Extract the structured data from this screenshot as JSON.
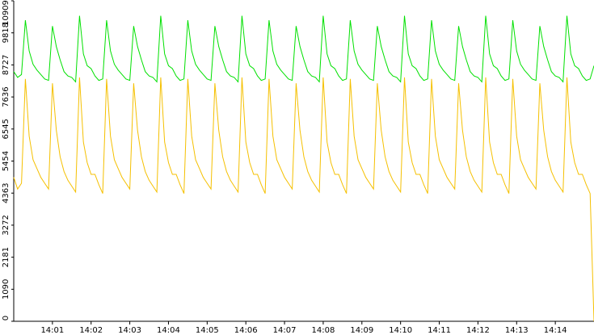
{
  "chart_data": {
    "type": "line",
    "x": [
      0,
      0.1,
      0.2,
      0.3,
      0.4,
      0.5,
      0.6,
      0.7,
      0.8,
      0.9,
      1.0,
      1.1,
      1.2,
      1.3,
      1.4,
      1.5,
      1.6,
      1.7,
      1.8,
      1.9,
      2.0,
      2.1,
      2.2,
      2.3,
      2.4,
      2.5,
      2.6,
      2.7,
      2.8,
      2.9,
      3.0,
      3.1,
      3.2,
      3.3,
      3.4,
      3.5,
      3.6,
      3.7,
      3.8,
      3.9,
      4.0,
      4.1,
      4.2,
      4.3,
      4.4,
      4.5,
      4.6,
      4.7,
      4.8,
      4.9,
      5.0,
      5.1,
      5.2,
      5.3,
      5.4,
      5.5,
      5.6,
      5.7,
      5.8,
      5.9,
      6.0,
      6.1,
      6.2,
      6.3,
      6.4,
      6.5,
      6.6,
      6.7,
      6.8,
      6.9,
      7.0,
      7.1,
      7.2,
      7.3,
      7.4,
      7.5,
      7.6,
      7.7,
      7.8,
      7.9,
      8.0,
      8.1,
      8.2,
      8.3,
      8.4,
      8.5,
      8.6,
      8.7,
      8.8,
      8.9,
      9.0,
      9.1,
      9.2,
      9.3,
      9.4,
      9.5,
      9.6,
      9.7,
      9.8,
      9.9,
      10.0,
      10.1,
      10.2,
      10.3,
      10.4,
      10.5,
      10.6,
      10.7,
      10.8,
      10.9,
      11.0,
      11.1,
      11.2,
      11.3,
      11.4,
      11.5,
      11.6,
      11.7,
      11.8,
      11.9,
      12.0,
      12.1,
      12.2,
      12.3,
      12.4,
      12.5,
      12.6,
      12.7,
      12.8,
      12.9,
      13.0,
      13.1,
      13.2,
      13.3,
      13.4,
      13.5,
      13.6,
      13.7,
      13.8,
      13.9,
      14.0,
      14.1,
      14.2,
      14.3,
      14.4,
      14.5,
      14.6,
      14.7,
      14.8,
      14.9,
      15.0
    ],
    "series": [
      {
        "color": "#00e000",
        "values": [
          8500,
          8300,
          8400,
          10250,
          9200,
          8750,
          8550,
          8400,
          8250,
          8200,
          10050,
          9350,
          8900,
          8500,
          8350,
          8300,
          8150,
          10400,
          9100,
          8700,
          8600,
          8350,
          8200,
          8250,
          10250,
          9200,
          8750,
          8550,
          8400,
          8250,
          8200,
          10050,
          9350,
          8900,
          8500,
          8350,
          8300,
          8150,
          10400,
          9100,
          8700,
          8600,
          8350,
          8200,
          8250,
          10250,
          9200,
          8750,
          8550,
          8400,
          8250,
          8200,
          10050,
          9350,
          8900,
          8500,
          8350,
          8300,
          8150,
          10400,
          9100,
          8700,
          8600,
          8350,
          8200,
          8250,
          10250,
          9200,
          8750,
          8550,
          8400,
          8250,
          8200,
          10050,
          9350,
          8900,
          8500,
          8350,
          8300,
          8150,
          10400,
          9100,
          8700,
          8600,
          8350,
          8200,
          8250,
          10250,
          9200,
          8750,
          8550,
          8400,
          8250,
          8200,
          10050,
          9350,
          8900,
          8500,
          8350,
          8300,
          8150,
          10400,
          9100,
          8700,
          8600,
          8350,
          8200,
          8250,
          10250,
          9200,
          8750,
          8550,
          8400,
          8250,
          8200,
          10050,
          9350,
          8900,
          8500,
          8350,
          8300,
          8150,
          10400,
          9100,
          8700,
          8600,
          8350,
          8200,
          8250,
          10250,
          9200,
          8750,
          8550,
          8400,
          8250,
          8200,
          10050,
          9350,
          8900,
          8500,
          8350,
          8300,
          8150,
          10400,
          9100,
          8700,
          8600,
          8350,
          8200,
          8250,
          8700
        ]
      },
      {
        "color": "#f5c000",
        "values": [
          4900,
          4500,
          4700,
          8250,
          6300,
          5500,
          5200,
          4900,
          4700,
          4500,
          8100,
          6500,
          5600,
          5100,
          4800,
          4600,
          4400,
          8300,
          6100,
          5400,
          5000,
          5000,
          4650,
          4350,
          8250,
          6300,
          5500,
          5200,
          4900,
          4700,
          4500,
          8100,
          6500,
          5600,
          5100,
          4800,
          4600,
          4400,
          8300,
          6100,
          5400,
          5000,
          5000,
          4650,
          4350,
          8250,
          6300,
          5500,
          5200,
          4900,
          4700,
          4500,
          8100,
          6500,
          5600,
          5100,
          4800,
          4600,
          4400,
          8300,
          6100,
          5400,
          5000,
          5000,
          4650,
          4350,
          8250,
          6300,
          5500,
          5200,
          4900,
          4700,
          4500,
          8100,
          6500,
          5600,
          5100,
          4800,
          4600,
          4400,
          8300,
          6100,
          5400,
          5000,
          5000,
          4650,
          4350,
          8250,
          6300,
          5500,
          5200,
          4900,
          4700,
          4500,
          8100,
          6500,
          5600,
          5100,
          4800,
          4600,
          4400,
          8300,
          6100,
          5400,
          5000,
          5000,
          4650,
          4350,
          8250,
          6300,
          5500,
          5200,
          4900,
          4700,
          4500,
          8100,
          6500,
          5600,
          5100,
          4800,
          4600,
          4400,
          8300,
          6100,
          5400,
          5000,
          5000,
          4650,
          4350,
          8250,
          6300,
          5500,
          5200,
          4900,
          4700,
          4500,
          8100,
          6500,
          5600,
          5100,
          4800,
          4600,
          4400,
          8300,
          6100,
          5400,
          5000,
          5000,
          4650,
          4350,
          0
        ]
      }
    ],
    "xlim": [
      0,
      15
    ],
    "xticks": [
      {
        "value": 1,
        "label": "14:01"
      },
      {
        "value": 2,
        "label": "14:02"
      },
      {
        "value": 3,
        "label": "14:03"
      },
      {
        "value": 4,
        "label": "14:04"
      },
      {
        "value": 5,
        "label": "14:05"
      },
      {
        "value": 6,
        "label": "14:06"
      },
      {
        "value": 7,
        "label": "14:07"
      },
      {
        "value": 8,
        "label": "14:08"
      },
      {
        "value": 9,
        "label": "14:09"
      },
      {
        "value": 10,
        "label": "14:10"
      },
      {
        "value": 11,
        "label": "14:11"
      },
      {
        "value": 12,
        "label": "14:12"
      },
      {
        "value": 13,
        "label": "14:13"
      },
      {
        "value": 14,
        "label": "14:14"
      }
    ],
    "ylim": [
      0,
      10909
    ],
    "yticks": [
      0,
      1090,
      2181,
      3272,
      4363,
      5454,
      6545,
      7636,
      8727,
      9818,
      10909
    ]
  }
}
